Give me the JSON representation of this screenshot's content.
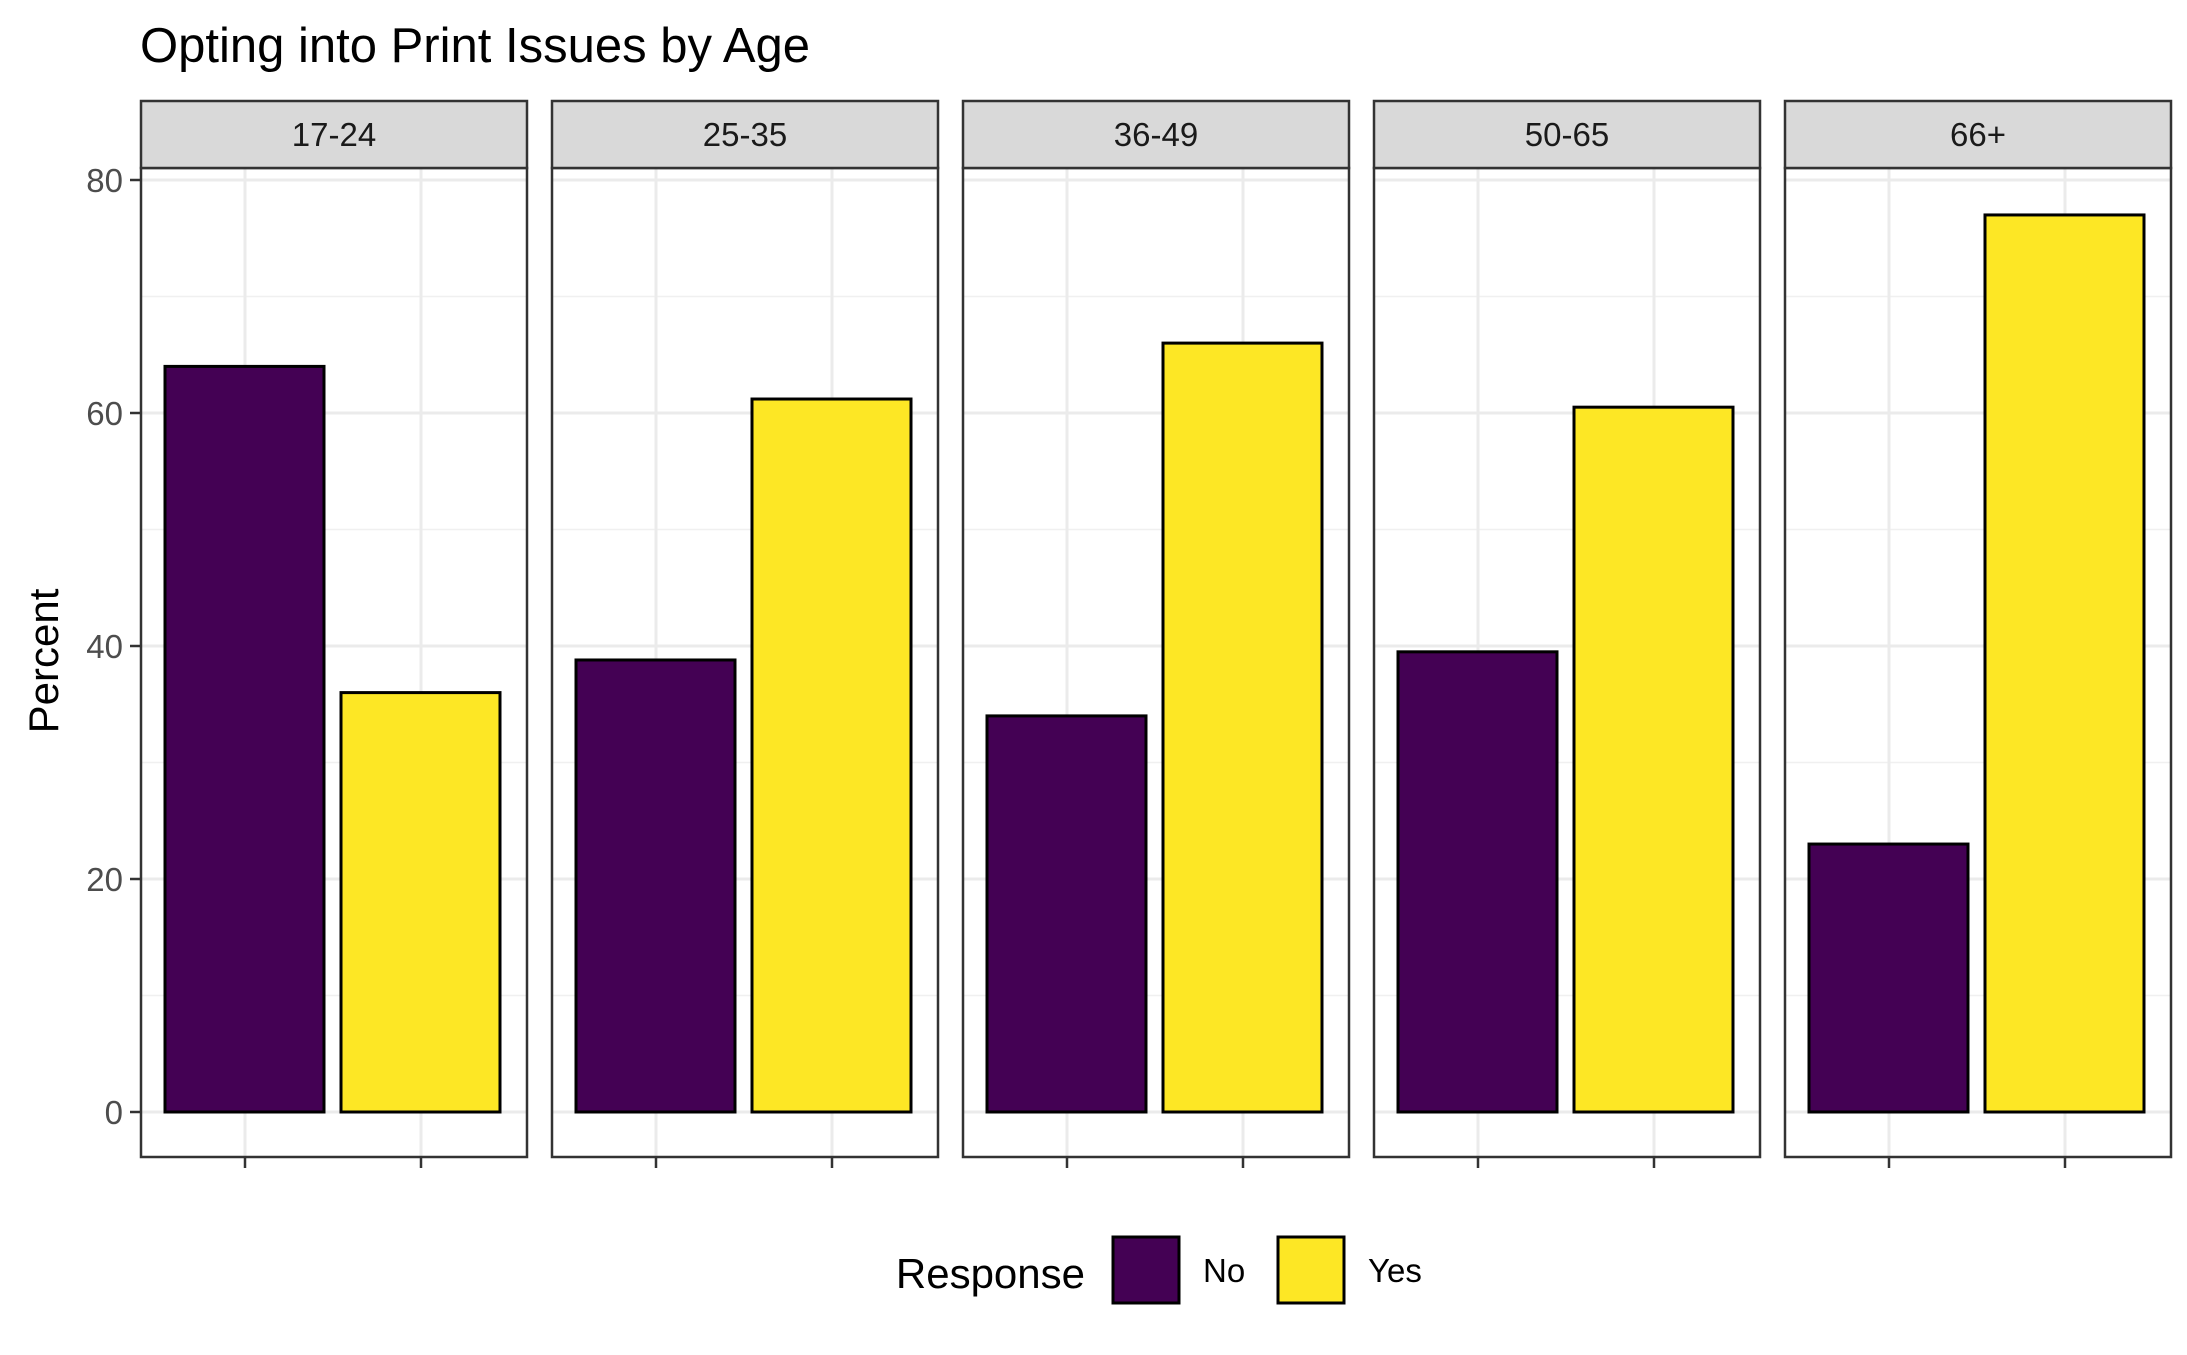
{
  "chart_data": {
    "type": "bar",
    "title": "Opting into Print Issues by Age",
    "xlabel": "",
    "ylabel": "Percent",
    "ylim": [
      0,
      85
    ],
    "yticks": [
      0,
      20,
      40,
      60,
      80
    ],
    "grid": true,
    "facets": [
      "17-24",
      "25-35",
      "36-49",
      "50-65",
      "66+"
    ],
    "categories": [
      "No",
      "Yes"
    ],
    "series": [
      {
        "facet": "17-24",
        "values": [
          64,
          36
        ]
      },
      {
        "facet": "25-35",
        "values": [
          38.8,
          61.2
        ]
      },
      {
        "facet": "36-49",
        "values": [
          34,
          66
        ]
      },
      {
        "facet": "50-65",
        "values": [
          39.5,
          60.5
        ]
      },
      {
        "facet": "66+",
        "values": [
          23,
          77
        ]
      }
    ],
    "legend": {
      "title": "Response",
      "position": "bottom",
      "entries": [
        "No",
        "Yes"
      ]
    },
    "colors": {
      "No": "#440154",
      "Yes": "#FDE725"
    }
  }
}
